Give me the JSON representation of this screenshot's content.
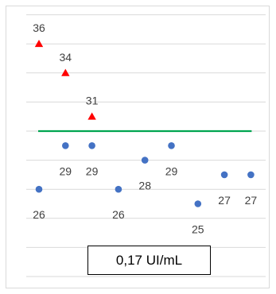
{
  "chart_data": {
    "type": "scatter",
    "ylim": [
      20,
      38
    ],
    "grid": true,
    "series": [
      {
        "marker": "triangle",
        "color": "#ff0000",
        "points": [
          {
            "x": 1,
            "y": 36,
            "label": "36"
          },
          {
            "x": 2,
            "y": 34,
            "label": "34"
          },
          {
            "x": 3,
            "y": 31,
            "label": "31"
          }
        ]
      },
      {
        "marker": "circle",
        "color": "#4472c4",
        "points": [
          {
            "x": 1,
            "y": 26,
            "label": "26"
          },
          {
            "x": 2,
            "y": 29,
            "label": "29"
          },
          {
            "x": 3,
            "y": 29,
            "label": "29"
          },
          {
            "x": 4,
            "y": 26,
            "label": "26"
          },
          {
            "x": 5,
            "y": 28,
            "label": "28"
          },
          {
            "x": 6,
            "y": 29,
            "label": "29"
          },
          {
            "x": 7,
            "y": 25,
            "label": "25"
          },
          {
            "x": 8,
            "y": 27,
            "label": "27"
          },
          {
            "x": 9,
            "y": 27,
            "label": "27"
          }
        ]
      }
    ],
    "threshold": {
      "y": 30,
      "color": "#00a550"
    },
    "annotation": "0,17 UI/mL"
  }
}
